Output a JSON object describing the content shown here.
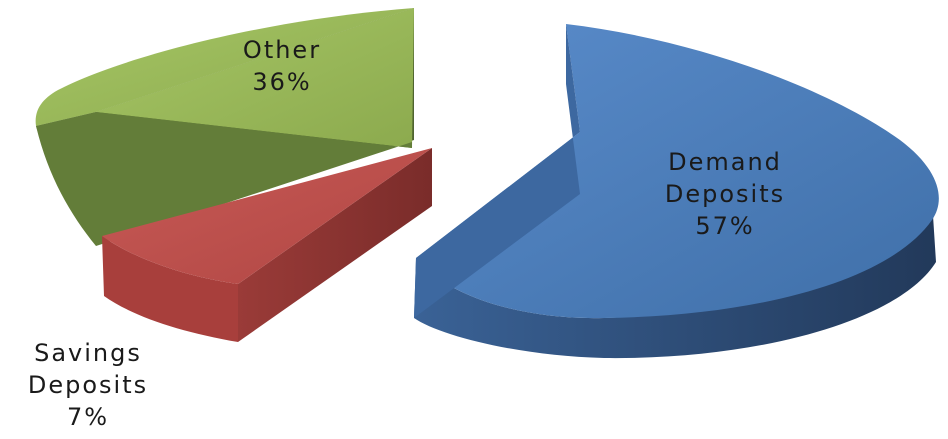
{
  "chart_data": {
    "type": "pie",
    "style": "3d-exploded",
    "title": "",
    "slices": [
      {
        "label_lines": [
          "Demand",
          "Deposits"
        ],
        "value": 57,
        "value_label": "57%",
        "color": "#4f81bd",
        "side_color": "#2f4e75"
      },
      {
        "label_lines": [
          "Savings",
          "Deposits"
        ],
        "value": 7,
        "value_label": "7%",
        "color": "#c0504d",
        "side_color": "#8a3532"
      },
      {
        "label_lines": [
          "Other"
        ],
        "value": 36,
        "value_label": "36%",
        "color": "#9bbb59",
        "side_color": "#5f7636"
      }
    ]
  }
}
